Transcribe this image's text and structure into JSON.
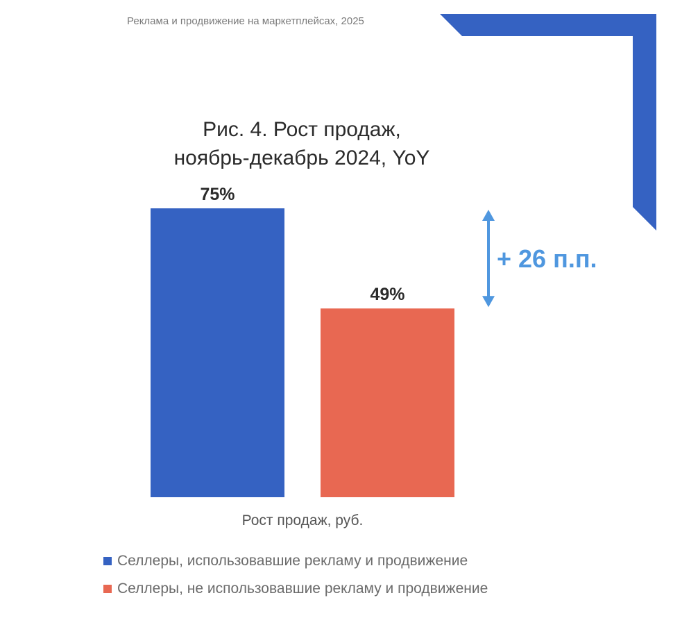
{
  "header": {
    "text": "Реклама и продвижение на маркетплейсах, 2025"
  },
  "colors": {
    "blue": "#3562c2",
    "coral": "#e86852",
    "accent": "#4f97df"
  },
  "chart_data": {
    "type": "bar",
    "title_lines": [
      "Рис. 4. Рост продаж,",
      "ноябрь-декабрь 2024, YoY"
    ],
    "categories": [
      "Рост продаж, руб."
    ],
    "xlabel": "Рост продаж, руб.",
    "ylim": [
      0,
      75
    ],
    "series": [
      {
        "name": "Селлеры, использовавшие рекламу и продвижение",
        "values": [
          75
        ],
        "label": "75%",
        "color": "#3562c2"
      },
      {
        "name": "Селлеры, не использовавшие рекламу и продвижение",
        "values": [
          49
        ],
        "label": "49%",
        "color": "#e86852"
      }
    ],
    "annotation": {
      "text": "+ 26 п.п."
    },
    "grid": false,
    "legend_position": "bottom-left"
  }
}
